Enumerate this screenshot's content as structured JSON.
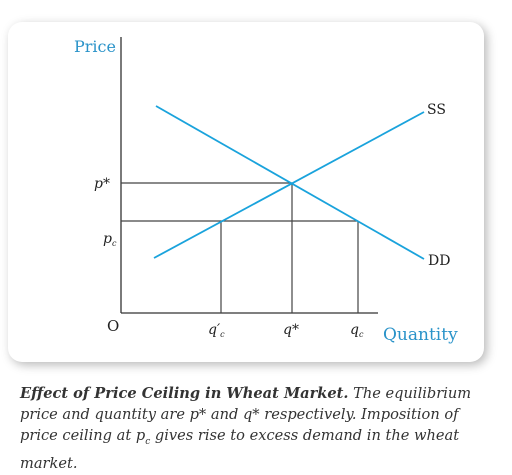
{
  "diagram": {
    "y_axis_label": "Price",
    "x_axis_label": "Quantity",
    "origin_label": "O",
    "supply_label": "SS",
    "demand_label": "DD",
    "p_star": "p*",
    "p_c": {
      "base": "p",
      "sub": "c"
    },
    "q_prime_c": {
      "base": "q′",
      "sub": "c"
    },
    "q_star": "q*",
    "q_c": {
      "base": "q",
      "sub": "c"
    }
  },
  "caption": {
    "title": "Effect of Price Ceiling in Wheat Market.",
    "text_1": " The equilibrium price and quantity are p* and q* respectively. Imposition of price ceiling at p",
    "sub": "c",
    "text_2": " gives rise to excess demand in the wheat market."
  },
  "colors": {
    "curve": "#1aa3dc",
    "axis": "#333333",
    "accent_text": "#2a93c9"
  }
}
